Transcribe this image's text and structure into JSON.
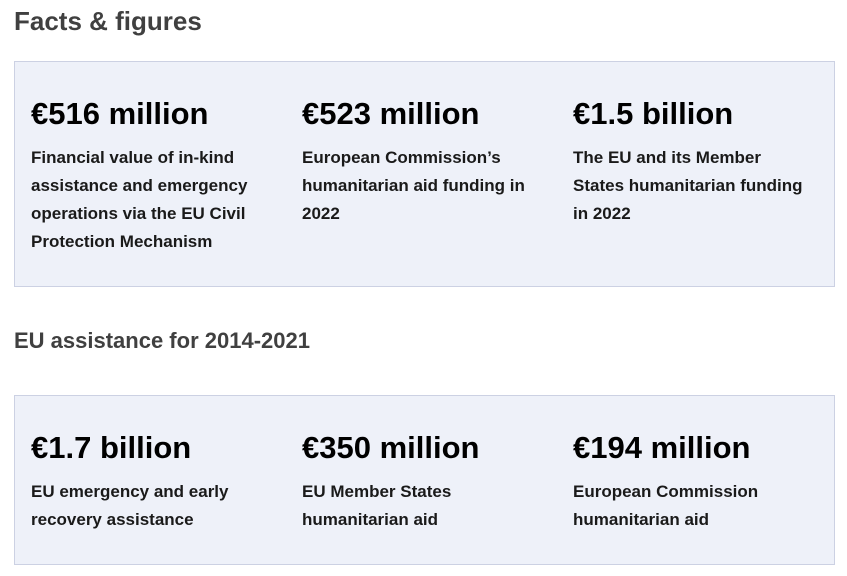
{
  "facts": {
    "title": "Facts & figures",
    "stats": [
      {
        "value": "€516 million",
        "description": "Financial value of in-kind assistance and emergency operations via the EU Civil Protection Mechanism"
      },
      {
        "value": "€523 million",
        "description": "European Commission’s humanitarian aid funding in 2022"
      },
      {
        "value": "€1.5 billion",
        "description": "The EU and its Member States humanitarian funding in 2022"
      }
    ]
  },
  "assistance": {
    "title": "EU assistance for 2014-2021",
    "stats": [
      {
        "value": "€1.7 billion",
        "description": "EU emergency and early recovery assistance"
      },
      {
        "value": "€350 million",
        "description": "EU Member States humanitarian aid"
      },
      {
        "value": "€194 million",
        "description": "European Commission humanitarian aid"
      }
    ]
  }
}
